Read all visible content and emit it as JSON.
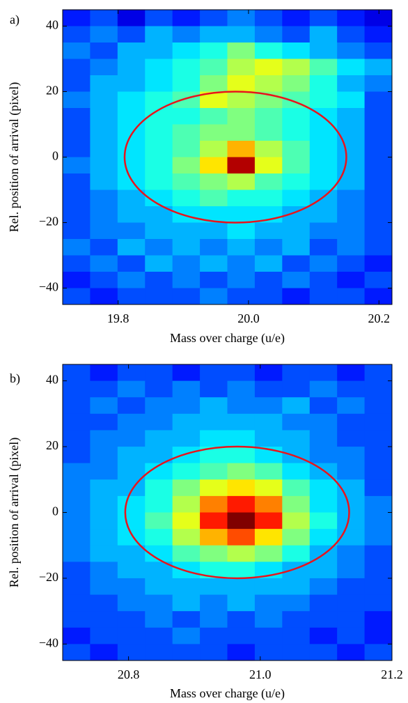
{
  "chart_data": [
    {
      "type": "heatmap",
      "panel_label": "a)",
      "xlabel": "Mass over charge (u/e)",
      "ylabel": "Rel. position of arrival (pixel)",
      "xlim": [
        19.715,
        20.22
      ],
      "ylim": [
        -45,
        45
      ],
      "xticks": [
        19.8,
        {
          "value": 20,
          "label": "20.0"
        },
        20.2
      ],
      "yticks": [
        {
          "value": -40,
          "label": "−40"
        },
        {
          "value": -20,
          "label": "−20"
        },
        0,
        20,
        40
      ],
      "z": [
        [
          0.15,
          0.2,
          0.1,
          0.2,
          0.15,
          0.2,
          0.25,
          0.2,
          0.15,
          0.2,
          0.15,
          0.1
        ],
        [
          0.2,
          0.25,
          0.2,
          0.3,
          0.25,
          0.3,
          0.3,
          0.25,
          0.2,
          0.3,
          0.2,
          0.15
        ],
        [
          0.25,
          0.2,
          0.3,
          0.3,
          0.35,
          0.4,
          0.5,
          0.4,
          0.35,
          0.3,
          0.25,
          0.2
        ],
        [
          0.2,
          0.25,
          0.3,
          0.35,
          0.4,
          0.45,
          0.55,
          0.6,
          0.55,
          0.45,
          0.35,
          0.3
        ],
        [
          0.2,
          0.3,
          0.3,
          0.35,
          0.4,
          0.5,
          0.6,
          0.55,
          0.5,
          0.4,
          0.3,
          0.25
        ],
        [
          0.25,
          0.3,
          0.35,
          0.4,
          0.45,
          0.6,
          0.55,
          0.5,
          0.45,
          0.4,
          0.35,
          0.2
        ],
        [
          0.2,
          0.3,
          0.35,
          0.4,
          0.4,
          0.45,
          0.5,
          0.45,
          0.4,
          0.35,
          0.3,
          0.2
        ],
        [
          0.2,
          0.3,
          0.35,
          0.4,
          0.45,
          0.5,
          0.5,
          0.45,
          0.4,
          0.35,
          0.3,
          0.2
        ],
        [
          0.2,
          0.3,
          0.35,
          0.4,
          0.45,
          0.55,
          0.7,
          0.55,
          0.45,
          0.35,
          0.3,
          0.2
        ],
        [
          0.25,
          0.3,
          0.35,
          0.4,
          0.5,
          0.65,
          0.95,
          0.6,
          0.45,
          0.35,
          0.3,
          0.2
        ],
        [
          0.2,
          0.3,
          0.35,
          0.4,
          0.45,
          0.5,
          0.55,
          0.45,
          0.4,
          0.35,
          0.3,
          0.2
        ],
        [
          0.2,
          0.25,
          0.3,
          0.35,
          0.4,
          0.45,
          0.4,
          0.4,
          0.35,
          0.3,
          0.25,
          0.2
        ],
        [
          0.2,
          0.25,
          0.3,
          0.3,
          0.35,
          0.35,
          0.35,
          0.35,
          0.3,
          0.3,
          0.25,
          0.2
        ],
        [
          0.2,
          0.25,
          0.25,
          0.3,
          0.3,
          0.3,
          0.35,
          0.3,
          0.3,
          0.25,
          0.25,
          0.2
        ],
        [
          0.25,
          0.2,
          0.3,
          0.25,
          0.3,
          0.25,
          0.3,
          0.25,
          0.3,
          0.2,
          0.25,
          0.2
        ],
        [
          0.2,
          0.25,
          0.2,
          0.3,
          0.25,
          0.3,
          0.25,
          0.3,
          0.2,
          0.25,
          0.2,
          0.15
        ],
        [
          0.15,
          0.2,
          0.25,
          0.2,
          0.25,
          0.2,
          0.25,
          0.2,
          0.25,
          0.2,
          0.15,
          0.2
        ],
        [
          0.2,
          0.15,
          0.2,
          0.2,
          0.2,
          0.25,
          0.2,
          0.2,
          0.15,
          0.2,
          0.2,
          0.15
        ]
      ],
      "ellipse": {
        "cx": 19.98,
        "cy": 0,
        "rx": 0.17,
        "ry": 20,
        "color": "#e8141c"
      }
    },
    {
      "type": "heatmap",
      "panel_label": "b)",
      "xlabel": "Mass over charge (u/e)",
      "ylabel": "Rel. position of arrival (pixel)",
      "xlim": [
        20.7,
        21.2
      ],
      "ylim": [
        -45,
        45
      ],
      "xticks": [
        20.8,
        {
          "value": 21,
          "label": "21.0"
        },
        21.2
      ],
      "yticks": [
        {
          "value": -40,
          "label": "−40"
        },
        {
          "value": -20,
          "label": "−20"
        },
        0,
        20,
        40
      ],
      "z": [
        [
          0.2,
          0.15,
          0.2,
          0.2,
          0.15,
          0.2,
          0.2,
          0.15,
          0.2,
          0.2,
          0.15,
          0.2
        ],
        [
          0.2,
          0.2,
          0.25,
          0.2,
          0.25,
          0.2,
          0.25,
          0.2,
          0.2,
          0.25,
          0.2,
          0.2
        ],
        [
          0.2,
          0.25,
          0.2,
          0.25,
          0.25,
          0.3,
          0.25,
          0.25,
          0.3,
          0.2,
          0.25,
          0.2
        ],
        [
          0.2,
          0.2,
          0.25,
          0.25,
          0.3,
          0.3,
          0.3,
          0.3,
          0.25,
          0.25,
          0.2,
          0.2
        ],
        [
          0.2,
          0.25,
          0.25,
          0.3,
          0.3,
          0.35,
          0.35,
          0.3,
          0.3,
          0.25,
          0.2,
          0.2
        ],
        [
          0.2,
          0.25,
          0.3,
          0.3,
          0.35,
          0.4,
          0.4,
          0.35,
          0.3,
          0.25,
          0.25,
          0.2
        ],
        [
          0.25,
          0.25,
          0.3,
          0.35,
          0.4,
          0.45,
          0.5,
          0.45,
          0.35,
          0.3,
          0.25,
          0.2
        ],
        [
          0.25,
          0.3,
          0.3,
          0.4,
          0.5,
          0.6,
          0.65,
          0.6,
          0.45,
          0.35,
          0.3,
          0.2
        ],
        [
          0.25,
          0.3,
          0.35,
          0.4,
          0.55,
          0.75,
          0.85,
          0.75,
          0.5,
          0.35,
          0.3,
          0.25
        ],
        [
          0.25,
          0.3,
          0.35,
          0.45,
          0.6,
          0.85,
          1,
          0.85,
          0.55,
          0.4,
          0.3,
          0.25
        ],
        [
          0.25,
          0.3,
          0.35,
          0.4,
          0.55,
          0.7,
          0.8,
          0.65,
          0.5,
          0.35,
          0.3,
          0.25
        ],
        [
          0.25,
          0.3,
          0.3,
          0.35,
          0.45,
          0.5,
          0.55,
          0.5,
          0.4,
          0.3,
          0.25,
          0.2
        ],
        [
          0.2,
          0.25,
          0.3,
          0.3,
          0.35,
          0.4,
          0.4,
          0.35,
          0.3,
          0.3,
          0.25,
          0.2
        ],
        [
          0.2,
          0.25,
          0.25,
          0.3,
          0.3,
          0.3,
          0.3,
          0.3,
          0.3,
          0.25,
          0.2,
          0.2
        ],
        [
          0.2,
          0.2,
          0.25,
          0.25,
          0.3,
          0.25,
          0.3,
          0.25,
          0.25,
          0.2,
          0.2,
          0.2
        ],
        [
          0.2,
          0.2,
          0.2,
          0.25,
          0.2,
          0.25,
          0.2,
          0.25,
          0.2,
          0.2,
          0.2,
          0.15
        ],
        [
          0.15,
          0.2,
          0.2,
          0.2,
          0.25,
          0.2,
          0.2,
          0.2,
          0.2,
          0.15,
          0.2,
          0.15
        ],
        [
          0.2,
          0.15,
          0.2,
          0.2,
          0.2,
          0.2,
          0.15,
          0.2,
          0.2,
          0.2,
          0.15,
          0.2
        ]
      ],
      "ellipse": {
        "cx": 20.965,
        "cy": 0,
        "rx": 0.17,
        "ry": 20,
        "color": "#e8141c"
      }
    }
  ]
}
